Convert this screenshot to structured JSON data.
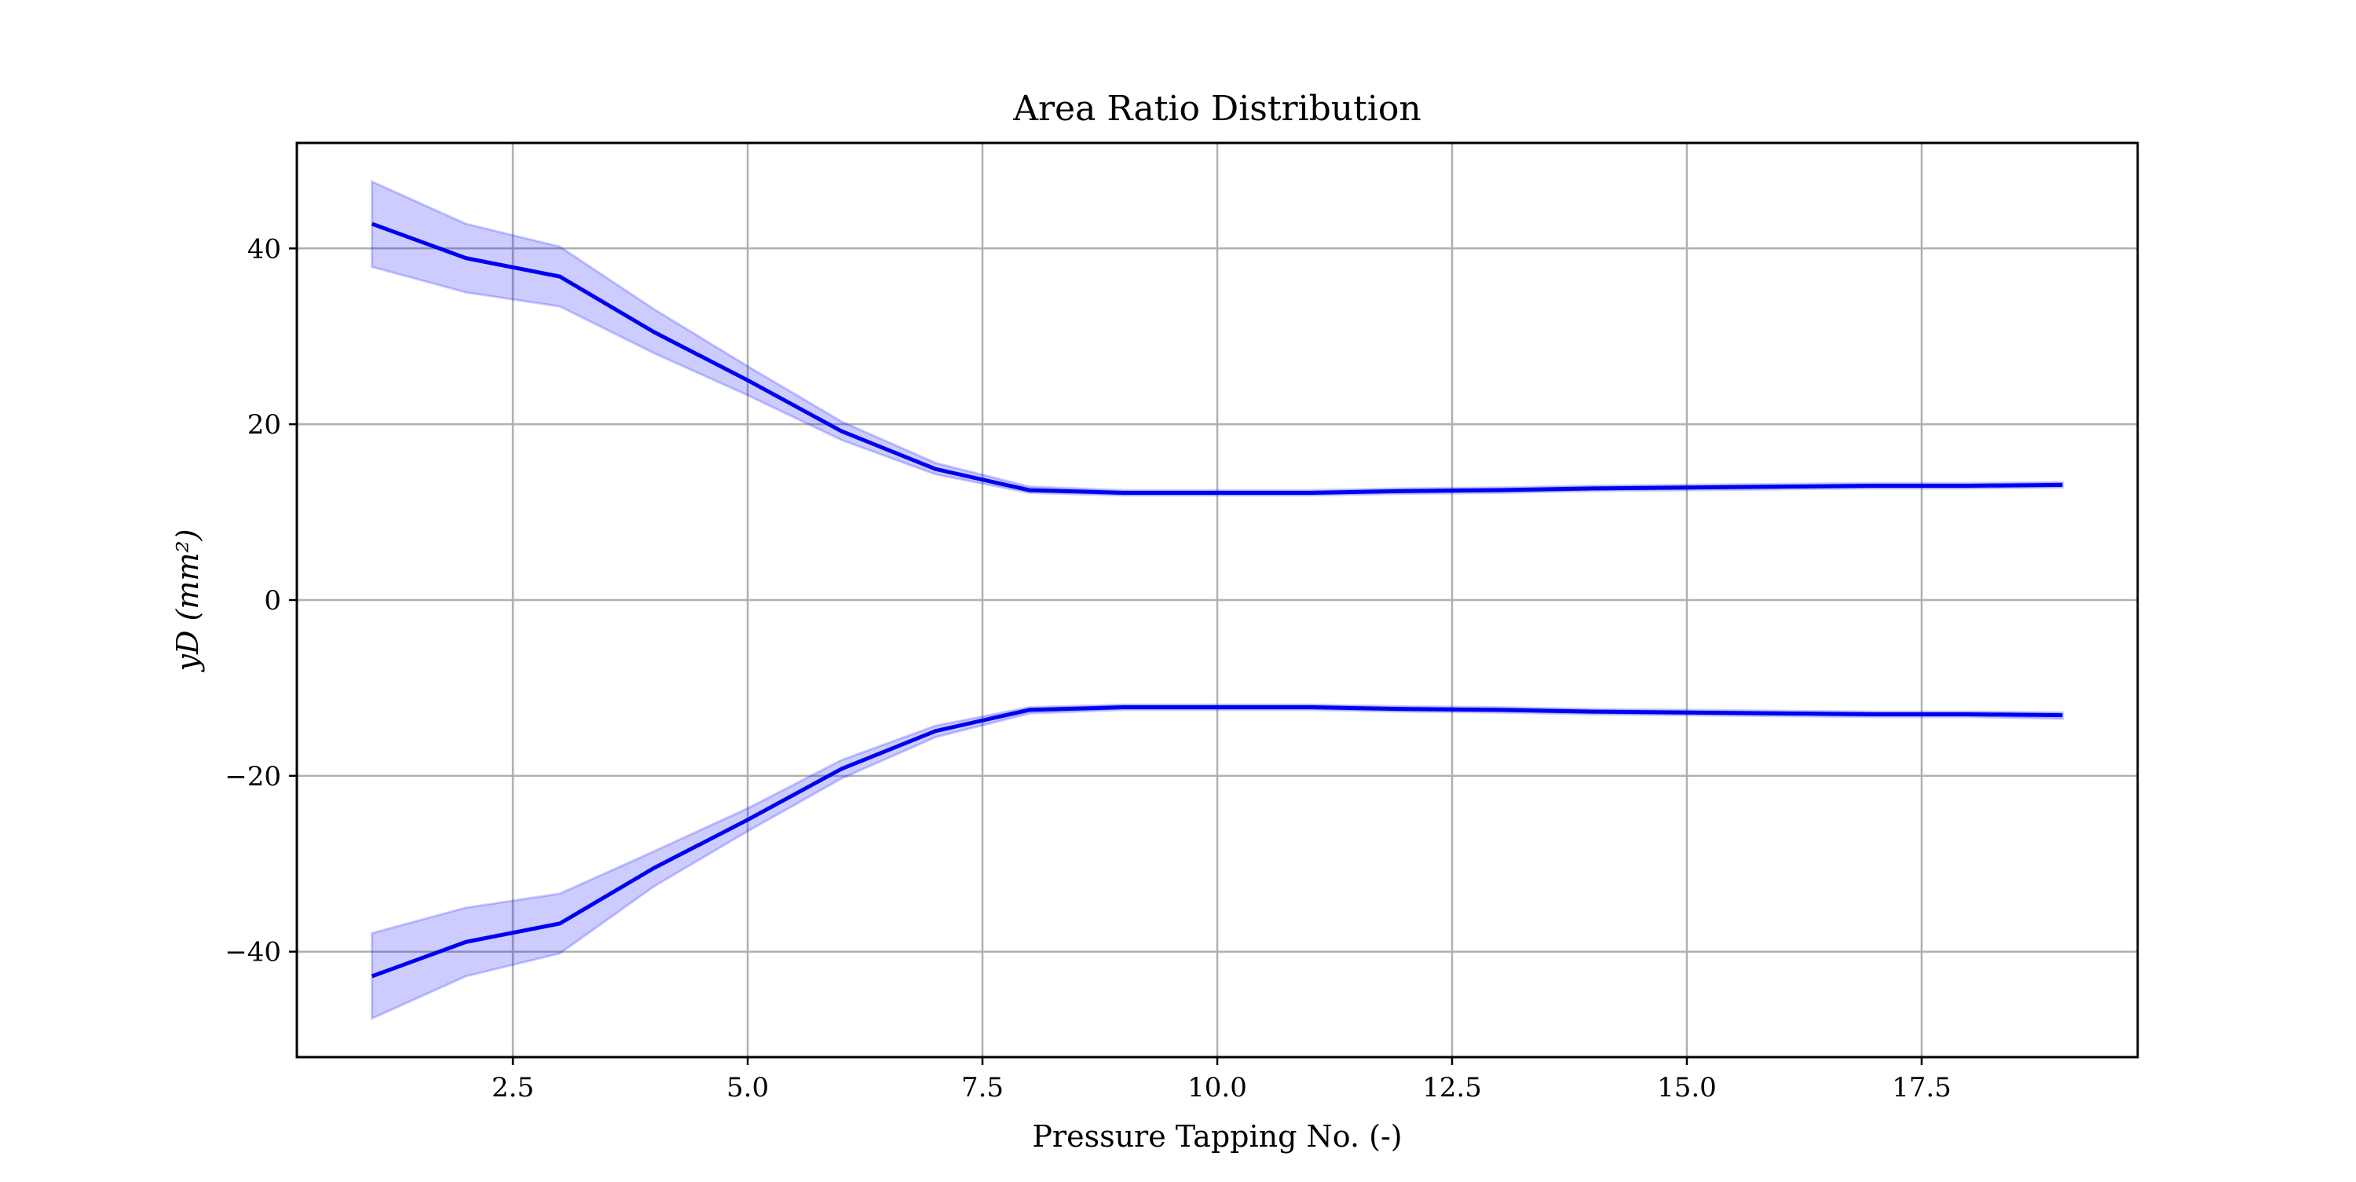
{
  "chart_data": {
    "type": "line",
    "title": "Area Ratio Distribution",
    "xlabel": "Pressure Tapping No. (-)",
    "ylabel": "yD (mm²)",
    "xlim": [
      0.2,
      19.8
    ],
    "ylim": [
      -52,
      52
    ],
    "xticks": [
      2.5,
      5.0,
      7.5,
      10.0,
      12.5,
      15.0,
      17.5
    ],
    "xtick_labels": [
      "2.5",
      "5.0",
      "7.5",
      "10.0",
      "12.5",
      "15.0",
      "17.5"
    ],
    "yticks": [
      -40,
      -20,
      0,
      20,
      40
    ],
    "ytick_labels": [
      "−40",
      "−20",
      "0",
      "20",
      "40"
    ],
    "grid": true,
    "line_color": "#0000ee",
    "band_color": "#0000ff",
    "x": [
      1,
      2,
      3,
      4,
      5,
      6,
      7,
      8,
      9,
      10,
      11,
      12,
      13,
      14,
      15,
      16,
      17,
      18,
      19
    ],
    "series": [
      {
        "values": [
          42.8,
          38.9,
          36.8,
          30.5,
          25.0,
          19.2,
          14.9,
          12.5,
          12.2,
          12.2,
          12.2,
          12.4,
          12.5,
          12.7,
          12.8,
          12.9,
          13.0,
          13.0,
          13.1
        ],
        "lower": [
          37.9,
          35.0,
          33.4,
          28.1,
          23.3,
          18.2,
          14.3,
          12.2,
          11.9,
          11.9,
          11.9,
          12.1,
          12.2,
          12.4,
          12.5,
          12.6,
          12.7,
          12.7,
          12.8
        ],
        "upper": [
          47.6,
          42.8,
          40.2,
          33.1,
          26.6,
          20.3,
          15.6,
          12.9,
          12.5,
          12.5,
          12.5,
          12.7,
          12.8,
          13.0,
          13.1,
          13.2,
          13.3,
          13.3,
          13.4
        ]
      },
      {
        "values": [
          -42.8,
          -38.9,
          -36.8,
          -30.5,
          -25.0,
          -19.2,
          -14.9,
          -12.5,
          -12.2,
          -12.2,
          -12.2,
          -12.4,
          -12.5,
          -12.7,
          -12.8,
          -12.9,
          -13.0,
          -13.0,
          -13.1
        ],
        "lower": [
          -47.6,
          -42.8,
          -40.2,
          -32.6,
          -26.3,
          -20.3,
          -15.6,
          -12.9,
          -12.5,
          -12.5,
          -12.5,
          -12.7,
          -12.8,
          -13.0,
          -13.1,
          -13.2,
          -13.3,
          -13.3,
          -13.5
        ],
        "upper": [
          -37.9,
          -35.0,
          -33.4,
          -28.6,
          -23.7,
          -18.2,
          -14.3,
          -12.2,
          -11.9,
          -11.9,
          -11.9,
          -12.1,
          -12.2,
          -12.4,
          -12.5,
          -12.6,
          -12.7,
          -12.7,
          -12.8
        ]
      }
    ]
  }
}
